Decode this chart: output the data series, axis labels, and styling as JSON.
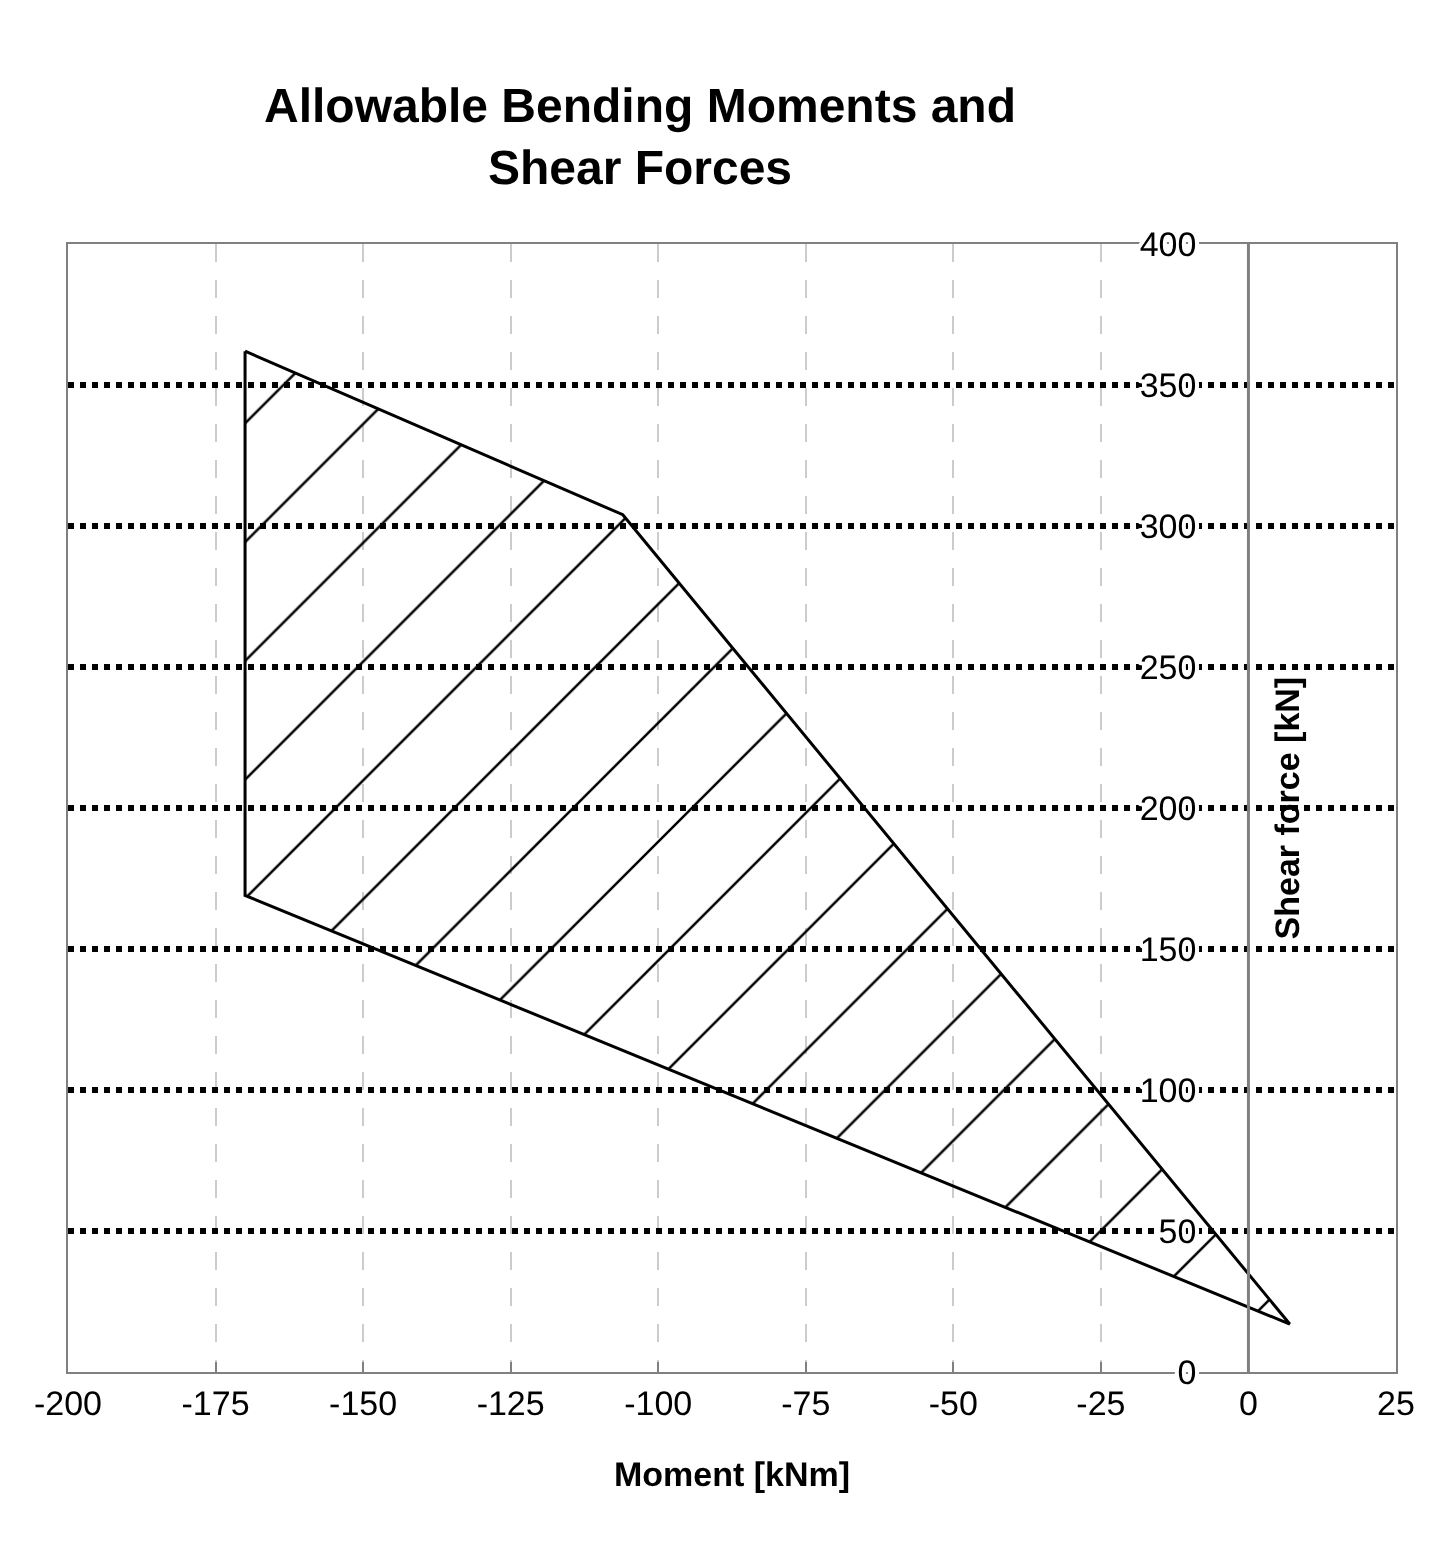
{
  "chart_data": {
    "type": "area",
    "title": "Allowable Bending Moments and Shear Forces",
    "xlabel": "Moment [kNm]",
    "ylabel": "Shear force [kN]",
    "x": [
      -170,
      -106,
      7,
      -170,
      -170
    ],
    "series": [
      {
        "color": "#000000",
        "values": [
          362,
          304,
          17,
          169,
          362
        ]
      }
    ],
    "xlim": [
      -200,
      25
    ],
    "xticks": [
      -200,
      -175,
      -150,
      -125,
      -100,
      -75,
      -50,
      -25,
      0,
      25
    ],
    "ylim": [
      0,
      400
    ],
    "yticks": [
      0,
      50,
      100,
      150,
      200,
      250,
      300,
      350,
      400
    ],
    "grid": true,
    "legend": false,
    "marker": "none",
    "line_style": "solid"
  }
}
